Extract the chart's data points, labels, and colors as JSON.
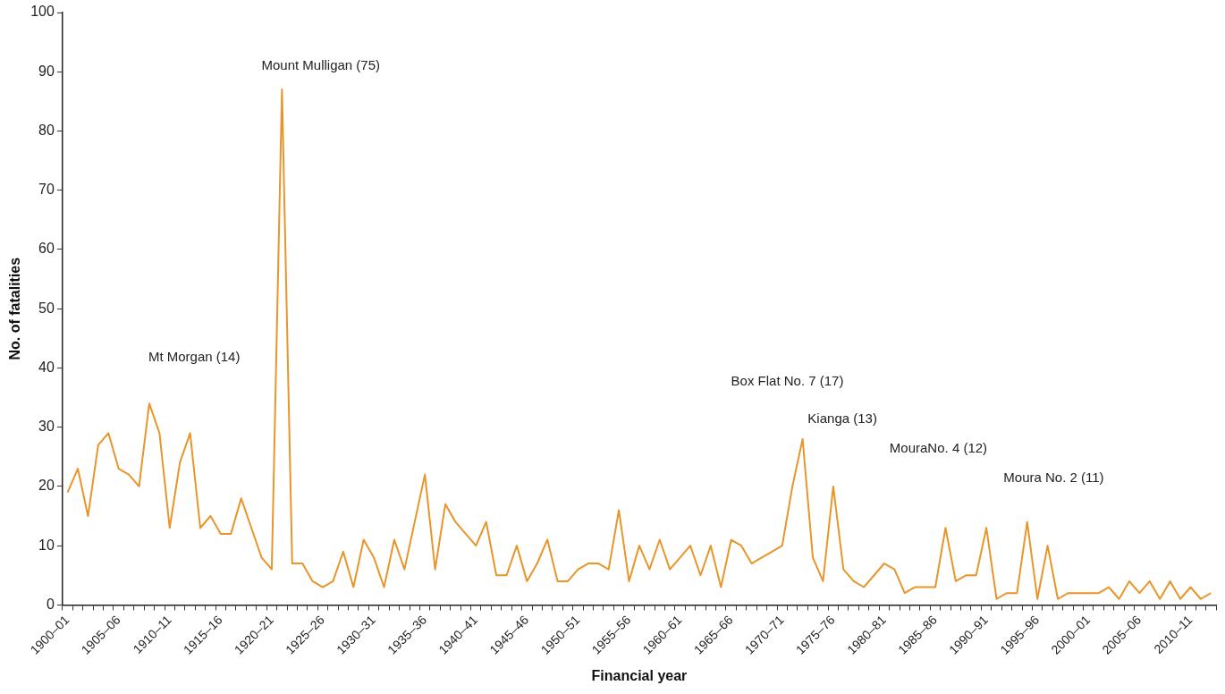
{
  "chart_data": {
    "type": "line",
    "xlabel": "Financial year",
    "ylabel": "No. of fatalities",
    "categories": [
      "1900–01",
      null,
      null,
      null,
      null,
      "1905–06",
      null,
      null,
      null,
      null,
      "1910–11",
      null,
      null,
      null,
      null,
      "1915–16",
      null,
      null,
      null,
      null,
      "1920–21",
      null,
      null,
      null,
      null,
      "1925–26",
      null,
      null,
      null,
      null,
      "1930–31",
      null,
      null,
      null,
      null,
      "1935–36",
      null,
      null,
      null,
      null,
      "1940–41",
      null,
      null,
      null,
      null,
      "1945–46",
      null,
      null,
      null,
      null,
      "1950–51",
      null,
      null,
      null,
      null,
      "1955–56",
      null,
      null,
      null,
      null,
      "1960–61",
      null,
      null,
      null,
      null,
      "1965–66",
      null,
      null,
      null,
      null,
      "1970–71",
      null,
      null,
      null,
      null,
      "1975–76",
      null,
      null,
      null,
      null,
      "1980–81",
      null,
      null,
      null,
      null,
      "1985–86",
      null,
      null,
      null,
      null,
      "1990–91",
      null,
      null,
      null,
      null,
      "1995–96",
      null,
      null,
      null,
      null,
      "2000–01",
      null,
      null,
      null,
      null,
      "2005–06",
      null,
      null,
      null,
      null,
      "2010–11",
      null,
      null
    ],
    "series": [
      {
        "color": "#e8952a",
        "values": [
          19,
          23,
          15,
          27,
          29,
          23,
          22,
          20,
          34,
          29,
          13,
          24,
          29,
          13,
          15,
          12,
          12,
          18,
          13,
          8,
          6,
          87,
          7,
          7,
          4,
          3,
          4,
          9,
          3,
          11,
          8,
          3,
          11,
          6,
          14,
          22,
          6,
          17,
          14,
          12,
          10,
          14,
          5,
          5,
          10,
          4,
          7,
          11,
          4,
          4,
          6,
          7,
          7,
          6,
          16,
          4,
          10,
          6,
          11,
          6,
          8,
          10,
          5,
          10,
          3,
          11,
          10,
          7,
          8,
          9,
          10,
          20,
          28,
          8,
          4,
          20,
          6,
          4,
          3,
          5,
          7,
          6,
          2,
          3,
          3,
          3,
          13,
          4,
          5,
          5,
          13,
          1,
          2,
          2,
          14,
          1,
          10,
          1,
          2,
          2,
          2,
          2,
          3,
          1,
          4,
          2,
          4,
          1,
          4,
          1,
          3,
          1,
          2
        ]
      }
    ],
    "ylim": [
      0,
      100
    ],
    "yticks": [
      0,
      10,
      20,
      30,
      40,
      50,
      60,
      70,
      80,
      90,
      100
    ],
    "grid": false,
    "legend": false,
    "marker": "none",
    "line_style": "solid",
    "annotations": [
      "Mount Mulligan (75)",
      "Mt Morgan (14)",
      "Box Flat No. 7 (17)",
      "Kianga (13)",
      "MouraNo. 4 (12)",
      "Moura No. 2 (11)"
    ]
  }
}
